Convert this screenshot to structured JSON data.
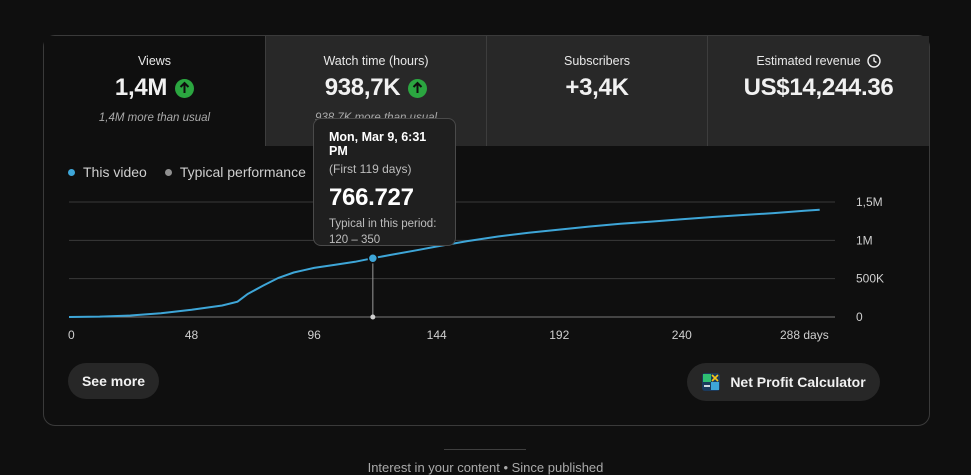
{
  "metrics": [
    {
      "label": "Views",
      "value": "1,4M",
      "note": "1,4M more than usual",
      "up": true,
      "active": true
    },
    {
      "label": "Watch time (hours)",
      "value": "938,7K",
      "note": "938,7K more than usual",
      "up": true
    },
    {
      "label": "Subscribers",
      "value": "+3,4K"
    },
    {
      "label": "Estimated revenue",
      "value": "US$14,244.36",
      "icon": "clock-icon"
    }
  ],
  "legend": {
    "this_video": "This video",
    "typical": "Typical performance"
  },
  "colors": {
    "this_video": "#3ea6d8",
    "typical": "#909090",
    "up": "#2ba640"
  },
  "tooltip": {
    "date": "Mon, Mar 9, 6:31 PM",
    "sub": "(First 119 days)",
    "value": "766.727",
    "typical_label": "Typical in this period:",
    "typical_range": "120 – 350"
  },
  "chart_data": {
    "type": "line",
    "xlabel": "days",
    "x_ticks": [
      "0",
      "48",
      "96",
      "144",
      "192",
      "240",
      "288 days"
    ],
    "x_tick_values": [
      0,
      48,
      96,
      144,
      192,
      240,
      288
    ],
    "y_ticks": [
      "0",
      "500K",
      "1M",
      "1,5M"
    ],
    "y_tick_values": [
      0,
      500000,
      1000000,
      1500000
    ],
    "xlim": [
      0,
      300
    ],
    "ylim": [
      0,
      1500000
    ],
    "series": [
      {
        "name": "This video",
        "x": [
          0,
          12,
          24,
          36,
          48,
          60,
          66,
          70,
          76,
          82,
          88,
          92,
          96,
          104,
          112,
          119,
          126,
          136,
          144,
          156,
          168,
          180,
          192,
          204,
          216,
          228,
          240,
          252,
          264,
          276,
          288,
          294
        ],
        "y": [
          0,
          5000,
          20000,
          50000,
          95000,
          150000,
          200000,
          300000,
          410000,
          510000,
          580000,
          610000,
          640000,
          680000,
          720000,
          766727,
          810000,
          870000,
          920000,
          990000,
          1050000,
          1100000,
          1140000,
          1180000,
          1215000,
          1245000,
          1275000,
          1305000,
          1330000,
          1355000,
          1385000,
          1400000
        ]
      }
    ],
    "highlight": {
      "x": 119,
      "y": 766727
    }
  },
  "buttons": {
    "see_more": "See more",
    "net_profit": "Net Profit Calculator"
  },
  "footer": {
    "text": "Interest in your content • Since published"
  }
}
